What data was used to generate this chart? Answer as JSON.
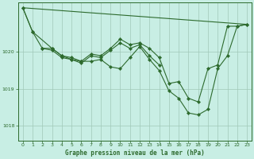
{
  "title": "Graphe pression niveau de la mer (hPa)",
  "background_color": "#c8eee4",
  "line_color": "#2d6a2d",
  "grid_color": "#a0c8b8",
  "x_ticks": [
    0,
    1,
    2,
    3,
    4,
    5,
    6,
    7,
    8,
    9,
    10,
    11,
    12,
    13,
    14,
    15,
    16,
    17,
    18,
    19,
    20,
    21,
    22,
    23
  ],
  "ylim": [
    1017.6,
    1021.35
  ],
  "yticks": [
    1018,
    1019,
    1020
  ],
  "series1_x": [
    0,
    1,
    3,
    4,
    5,
    6,
    7,
    8,
    9,
    10,
    11,
    12,
    13,
    14,
    15,
    16,
    17,
    18,
    19,
    20,
    21,
    22,
    23
  ],
  "series1_y": [
    1021.2,
    1020.55,
    1020.1,
    1019.9,
    1019.8,
    1019.75,
    1019.75,
    1019.8,
    1019.6,
    1019.55,
    1019.85,
    1020.15,
    1019.8,
    1019.5,
    1018.95,
    1018.75,
    1018.35,
    1018.3,
    1018.45,
    1019.55,
    1019.9,
    1020.7,
    1020.75
  ],
  "series2_x": [
    0,
    1,
    2,
    3,
    4,
    5,
    6,
    7,
    8,
    9,
    10,
    11,
    12,
    13,
    14,
    15,
    16,
    17,
    18,
    19,
    20,
    21,
    22,
    23
  ],
  "series2_y": [
    1021.2,
    1020.55,
    1020.1,
    1020.1,
    1019.9,
    1019.85,
    1019.75,
    1019.95,
    1019.9,
    1020.1,
    1020.35,
    1020.2,
    1020.25,
    1020.1,
    1019.85,
    1019.15,
    1019.2,
    1018.75,
    1018.65,
    1019.55,
    1019.65,
    1020.7,
    1020.7,
    1020.75
  ],
  "series3_x": [
    2,
    3,
    4,
    5,
    6,
    7,
    8,
    9,
    10,
    11,
    12,
    13,
    14
  ],
  "series3_y": [
    1020.1,
    1020.05,
    1019.85,
    1019.8,
    1019.7,
    1019.9,
    1019.85,
    1020.05,
    1020.25,
    1020.1,
    1020.2,
    1019.9,
    1019.65
  ],
  "trend_x": [
    0,
    23
  ],
  "trend_y": [
    1021.2,
    1020.75
  ]
}
